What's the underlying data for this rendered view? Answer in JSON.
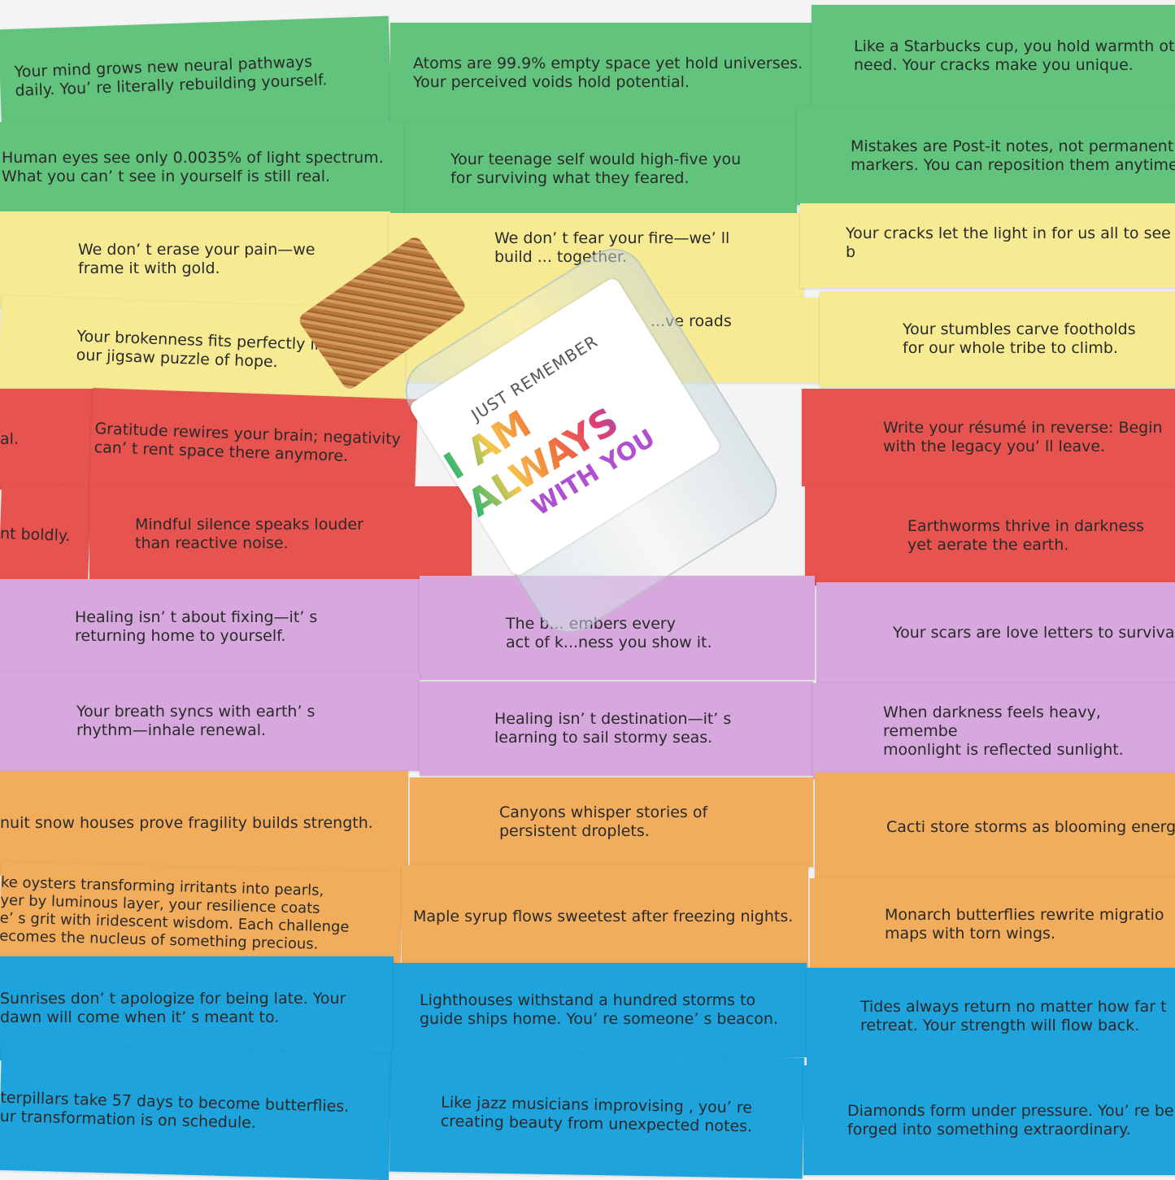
{
  "colors": {
    "green": "#62c47c",
    "yellow": "#f6ea93",
    "red": "#e7534f",
    "purple": "#d6a8de",
    "orange": "#f1ad5c",
    "blue": "#1fa3dc"
  },
  "cards": [
    {
      "color": "green",
      "text": "Your mind grows new neural pathways\ndaily. You’ re literally rebuilding yourself."
    },
    {
      "color": "green",
      "text": "Atoms are 99.9% empty space yet hold universes.\nYour perceived voids hold potential."
    },
    {
      "color": "green",
      "text": "Like a Starbucks cup, you hold warmth ot\nneed. Your cracks make you unique."
    },
    {
      "color": "green",
      "text": "Human eyes see only 0.0035% of light spectrum.\nWhat you can’ t see in yourself is still real."
    },
    {
      "color": "green",
      "text": "Your teenage self would high-five you\nfor surviving what they feared."
    },
    {
      "color": "green",
      "text": "Mistakes are Post-it notes, not permanent\nmarkers. You can reposition them anytime"
    },
    {
      "color": "yellow",
      "text": "We don’ t erase your pain—we\nframe it with gold."
    },
    {
      "color": "yellow",
      "text": "We don’ t fear your fire—we’ ll\nbuild ... together."
    },
    {
      "color": "yellow",
      "text": "Your cracks let the light in for us all to see b"
    },
    {
      "color": "yellow",
      "text": "Your brokenness fits perfectly in\nour jigsaw puzzle of hope."
    },
    {
      "color": "yellow",
      "text": "...ve roads"
    },
    {
      "color": "yellow",
      "text": "Your stumbles carve footholds\nfor our whole tribe to climb."
    },
    {
      "color": "red",
      "text": "al."
    },
    {
      "color": "red",
      "text": "Gratitude rewires your brain; negativity\ncan’ t rent space there anymore."
    },
    {
      "color": "red",
      "text": "Write your résumé in reverse: Begin\nwith the legacy you’ ll leave."
    },
    {
      "color": "red",
      "text": "nt boldly."
    },
    {
      "color": "red",
      "text": "Mindful silence speaks louder\nthan reactive noise."
    },
    {
      "color": "red",
      "text": "Earthworms thrive in darkness\nyet aerate the earth."
    },
    {
      "color": "purple",
      "text": "Healing isn’ t about fixing—it’ s\nreturning home to yourself."
    },
    {
      "color": "purple",
      "text": "The b... embers every\nact of k...ness you show it."
    },
    {
      "color": "purple",
      "text": "Your scars are love letters to surviva"
    },
    {
      "color": "purple",
      "text": "Your breath syncs with earth’ s\nrhythm—inhale renewal."
    },
    {
      "color": "purple",
      "text": "Healing isn’ t destination—it’ s\nlearning to sail stormy seas."
    },
    {
      "color": "purple",
      "text": "When darkness feels heavy, remembe\nmoonlight is reflected sunlight."
    },
    {
      "color": "orange",
      "text": "nuit snow houses prove fragility builds strength."
    },
    {
      "color": "orange",
      "text": "Canyons whisper stories of\npersistent droplets."
    },
    {
      "color": "orange",
      "text": "Cacti store storms as blooming energ"
    },
    {
      "color": "orange",
      "text": "ke oysters transforming irritants into pearls,\nyer by luminous layer, your resilience coats\ne’ s grit with iridescent wisdom. Each challenge\necomes the nucleus of something precious."
    },
    {
      "color": "orange",
      "text": "Maple syrup flows sweetest after freezing nights."
    },
    {
      "color": "orange",
      "text": "Monarch butterflies rewrite migratio\nmaps with torn wings."
    },
    {
      "color": "blue",
      "text": "Sunrises don’ t apologize for being late. Your\ndawn will come when it’ s meant to."
    },
    {
      "color": "blue",
      "text": "Lighthouses withstand a hundred storms to\nguide ships home. You’ re someone’ s beacon."
    },
    {
      "color": "blue",
      "text": "Tides always return no matter how far t\nretreat. Your strength will flow back."
    },
    {
      "color": "blue",
      "text": "terpillars take 57 days to become butterflies.\nur transformation is on schedule."
    },
    {
      "color": "blue",
      "text": "Like jazz musicians improvising , you’ re\ncreating beauty from unexpected notes."
    },
    {
      "color": "blue",
      "text": "Diamonds form under pressure. You’ re be\nforged into something extraordinary."
    }
  ],
  "jar": {
    "label_line1": "JUST REMEMBER",
    "label_line2": "I AM ALWAYS",
    "label_line3": "WITH YOU"
  }
}
